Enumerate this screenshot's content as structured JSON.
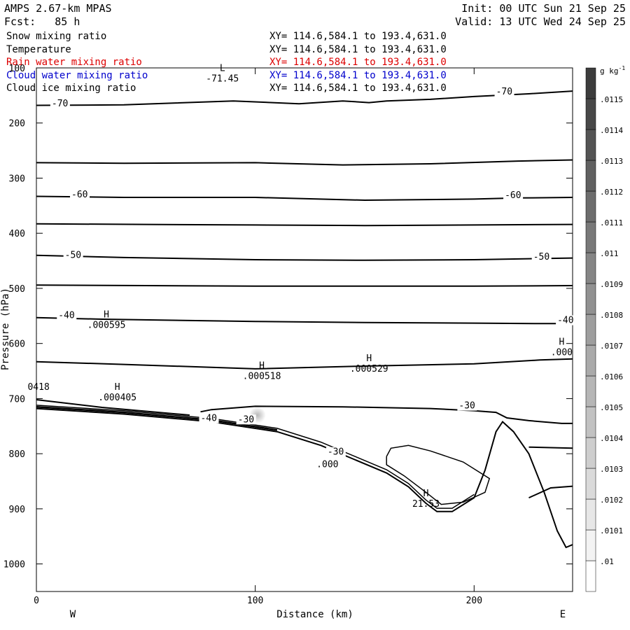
{
  "header": {
    "title": "AMPS 2.67-km MPAS",
    "fcst": "Fcst:   85 h",
    "init": "Init: 00 UTC Sun 21 Sep 25",
    "valid": "Valid: 13 UTC Wed 24 Sep 25"
  },
  "fields": [
    {
      "name": "Snow mixing ratio",
      "xy": "XY= 114.6,584.1 to 193.4,631.0",
      "color": "#000000"
    },
    {
      "name": "Temperature",
      "xy": "XY= 114.6,584.1 to 193.4,631.0",
      "color": "#000000"
    },
    {
      "name": "Rain water mixing ratio",
      "xy": "XY= 114.6,584.1 to 193.4,631.0",
      "color": "#dd0000"
    },
    {
      "name": "Cloud water mixing ratio",
      "xy": "XY= 114.6,584.1 to 193.4,631.0",
      "color": "#0000cc"
    },
    {
      "name": "Cloud ice mixing ratio",
      "xy": "XY= 114.6,584.1 to 193.4,631.0",
      "color": "#000000"
    }
  ],
  "chart_data": {
    "type": "line",
    "xlabel": "Distance (km)",
    "ylabel": "Pressure (hPa)",
    "xlim": [
      0,
      245
    ],
    "ylim": [
      100,
      1050
    ],
    "y_inverted": true,
    "x_ticks": [
      0,
      100,
      200
    ],
    "y_ticks": [
      100,
      200,
      300,
      400,
      500,
      600,
      700,
      800,
      900,
      1000
    ],
    "side_labels": {
      "left": "W",
      "right": "E"
    },
    "temperature_contours": [
      {
        "label": "-70",
        "points": [
          [
            0,
            168
          ],
          [
            40,
            167
          ],
          [
            90,
            160
          ],
          [
            120,
            165
          ],
          [
            140,
            160
          ],
          [
            152,
            163
          ],
          [
            160,
            160
          ],
          [
            180,
            157
          ],
          [
            200,
            152
          ],
          [
            225,
            147
          ],
          [
            245,
            142
          ]
        ]
      },
      {
        "label": "",
        "points": [
          [
            0,
            272
          ],
          [
            40,
            273
          ],
          [
            100,
            272
          ],
          [
            140,
            276
          ],
          [
            180,
            274
          ],
          [
            220,
            269
          ],
          [
            245,
            267
          ]
        ]
      },
      {
        "label": "-60",
        "points": [
          [
            0,
            333
          ],
          [
            40,
            335
          ],
          [
            100,
            335
          ],
          [
            150,
            340
          ],
          [
            200,
            338
          ],
          [
            220,
            336
          ],
          [
            245,
            335
          ]
        ]
      },
      {
        "label": "",
        "points": [
          [
            0,
            383
          ],
          [
            50,
            384
          ],
          [
            100,
            385
          ],
          [
            150,
            386
          ],
          [
            200,
            385
          ],
          [
            245,
            384
          ]
        ]
      },
      {
        "label": "-50",
        "points": [
          [
            0,
            440
          ],
          [
            40,
            444
          ],
          [
            100,
            448
          ],
          [
            150,
            449
          ],
          [
            200,
            448
          ],
          [
            230,
            446
          ],
          [
            245,
            445
          ]
        ]
      },
      {
        "label": "",
        "points": [
          [
            0,
            494
          ],
          [
            50,
            495
          ],
          [
            100,
            496
          ],
          [
            150,
            496
          ],
          [
            200,
            496
          ],
          [
            245,
            495
          ]
        ]
      },
      {
        "label": "-40",
        "points": [
          [
            0,
            553
          ],
          [
            30,
            556
          ],
          [
            100,
            560
          ],
          [
            150,
            562
          ],
          [
            200,
            563
          ],
          [
            230,
            564
          ],
          [
            245,
            564
          ]
        ]
      },
      {
        "label": "",
        "points": [
          [
            0,
            633
          ],
          [
            40,
            638
          ],
          [
            100,
            646
          ],
          [
            150,
            641
          ],
          [
            200,
            637
          ],
          [
            230,
            630
          ],
          [
            245,
            628
          ]
        ]
      },
      {
        "label": "-30",
        "points": [
          [
            75,
            724
          ],
          [
            80,
            720
          ],
          [
            100,
            714
          ],
          [
            140,
            715
          ],
          [
            180,
            718
          ],
          [
            200,
            722
          ],
          [
            210,
            725
          ],
          [
            215,
            735
          ],
          [
            225,
            740
          ],
          [
            240,
            745
          ],
          [
            245,
            745
          ]
        ]
      },
      {
        "label": "",
        "points": [
          [
            0,
            702
          ],
          [
            30,
            716
          ],
          [
            70,
            730
          ]
        ]
      },
      {
        "label": "",
        "points": [
          [
            225,
            788
          ],
          [
            245,
            790
          ]
        ]
      },
      {
        "label": "",
        "points": [
          [
            225,
            880
          ],
          [
            235,
            862
          ],
          [
            245,
            859
          ]
        ]
      }
    ],
    "contour_label_positions": [
      {
        "text": "-70",
        "x": 7,
        "y": 170
      },
      {
        "text": "-70",
        "x": 210,
        "y": 148
      },
      {
        "text": "-60",
        "x": 16,
        "y": 335
      },
      {
        "text": "-60",
        "x": 214,
        "y": 336
      },
      {
        "text": "-50",
        "x": 13,
        "y": 445
      },
      {
        "text": "-50",
        "x": 227,
        "y": 448
      },
      {
        "text": "-40",
        "x": 10,
        "y": 554
      },
      {
        "text": "-40",
        "x": 238,
        "y": 563
      },
      {
        "text": "-30",
        "x": 193,
        "y": 718
      },
      {
        "text": "-40",
        "x": 75,
        "y": 741
      },
      {
        "text": "-30",
        "x": 92,
        "y": 743
      },
      {
        "text": "-30",
        "x": 133,
        "y": 802
      }
    ],
    "extrema": [
      {
        "kind": "L",
        "value": "-71.45",
        "x": 85,
        "y": 108
      },
      {
        "kind": "H",
        "value": ".000595",
        "x": 32,
        "y": 555
      },
      {
        "kind": "H",
        "value": ".000405",
        "x": 37,
        "y": 687
      },
      {
        "kind": "H",
        "value": ".000518",
        "x": 103,
        "y": 648
      },
      {
        "kind": "H",
        "value": ".000529",
        "x": 152,
        "y": 635
      },
      {
        "kind": "H",
        "value": ".000",
        "x": 240,
        "y": 605
      },
      {
        "kind": "",
        "value": "0418",
        "x": 1,
        "y": 668
      },
      {
        "kind": "H",
        "value": "21.53",
        "x": 178,
        "y": 880
      },
      {
        "kind": "",
        "value": ".000",
        "x": 133,
        "y": 808
      }
    ],
    "terrain": {
      "ground": [
        [
          0,
          718
        ],
        [
          40,
          728
        ],
        [
          80,
          742
        ],
        [
          110,
          760
        ],
        [
          130,
          785
        ],
        [
          145,
          810
        ],
        [
          160,
          835
        ],
        [
          170,
          860
        ],
        [
          178,
          890
        ],
        [
          183,
          905
        ],
        [
          190,
          905
        ],
        [
          200,
          880
        ],
        [
          205,
          830
        ],
        [
          210,
          760
        ],
        [
          213,
          742
        ],
        [
          218,
          760
        ],
        [
          225,
          800
        ],
        [
          232,
          870
        ],
        [
          238,
          940
        ],
        [
          242,
          970
        ],
        [
          245,
          965
        ]
      ],
      "upper_lobe": [
        [
          160,
          805
        ],
        [
          162,
          790
        ],
        [
          170,
          785
        ],
        [
          180,
          795
        ],
        [
          195,
          815
        ],
        [
          207,
          845
        ],
        [
          205,
          870
        ],
        [
          195,
          888
        ],
        [
          185,
          892
        ],
        [
          178,
          870
        ],
        [
          168,
          840
        ],
        [
          160,
          820
        ],
        [
          160,
          805
        ]
      ]
    },
    "colorbar": {
      "unit": "g kg-1",
      "unit_main": "g kg",
      "unit_exp": "-1",
      "levels": [
        ".01",
        ".0101",
        ".0102",
        ".0103",
        ".0104",
        ".0105",
        ".0106",
        ".0107",
        ".0108",
        ".0109",
        ".011",
        ".0111",
        ".0112",
        ".0113",
        ".0114",
        ".0115"
      ]
    },
    "snow_shading": {
      "x": 101,
      "y_top": 715,
      "y_bottom": 745,
      "color": "#b0b0b0"
    }
  }
}
